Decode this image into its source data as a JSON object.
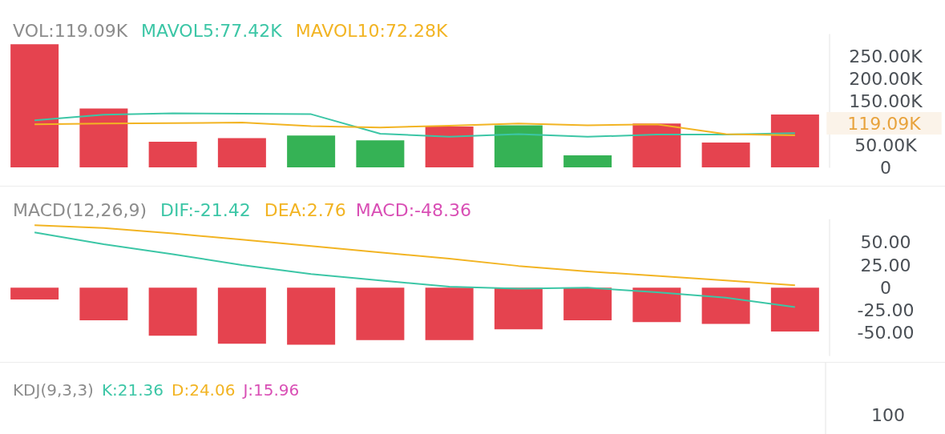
{
  "chart_data": [
    {
      "type": "bar",
      "title": "VOL:119.09K",
      "categories": [
        null,
        null,
        null,
        null,
        null,
        null,
        null,
        null,
        null,
        null,
        null,
        null
      ],
      "legend": "top left",
      "marker": "none",
      "grid": false,
      "ylim": [
        0,
        300
      ],
      "yticks": [
        0,
        {
          "value": 50,
          "label": "50.00K"
        },
        {
          "value": 150,
          "label": "150.00K"
        },
        {
          "value": 200,
          "label": "200.00K"
        },
        {
          "value": 250,
          "label": "250.00K"
        }
      ],
      "annotations": [
        "119.09K"
      ],
      "series": [
        {
          "type": "bar",
          "colors": [
            "#e5434f",
            "#e5434f",
            "#e5434f",
            "#e5434f",
            "#35b255",
            "#35b255",
            "#e5434f",
            "#35b255",
            "#35b255",
            "#e5434f",
            "#e5434f",
            "#e5434f"
          ],
          "values": [
            278,
            133,
            58,
            66,
            72,
            61,
            92,
            95,
            27,
            99,
            56,
            119.09
          ]
        },
        {
          "type": "line",
          "name": "MAVOL5:77.42K",
          "color": "#3cc6a6",
          "values": [
            106,
            119,
            122,
            121,
            120,
            76,
            69,
            75,
            69,
            74,
            74,
            77.42
          ]
        },
        {
          "type": "line",
          "name": "MAVOL10:72.28K",
          "color": "#f2b423",
          "values": [
            97,
            99,
            100,
            101,
            93,
            90,
            94,
            99,
            95,
            97,
            75,
            72.28
          ]
        }
      ]
    },
    {
      "type": "bar",
      "title": "MACD(12,26,9)",
      "categories": [
        null,
        null,
        null,
        null,
        null,
        null,
        null,
        null,
        null,
        null,
        null,
        null
      ],
      "legend": "top left",
      "marker": "none",
      "grid": false,
      "ylim": [
        -75,
        75
      ],
      "yticks": [
        {
          "value": 50,
          "label": "50.00"
        },
        {
          "value": 25,
          "label": "25.00"
        },
        0,
        {
          "value": -25,
          "label": "-25.00"
        },
        {
          "value": -50,
          "label": "-50.00"
        }
      ],
      "annotations": [
        "MACD:-48.36"
      ],
      "series": [
        {
          "type": "bar",
          "color": "#e5434f",
          "values": [
            -13,
            -36,
            -53,
            -62,
            -63,
            -58,
            -58,
            -46,
            -36,
            -38,
            -40,
            -48.36
          ]
        },
        {
          "type": "line",
          "name": "DIF:-21.42",
          "color": "#3cc6a6",
          "values": [
            61,
            48,
            37,
            25,
            15,
            8,
            1,
            -1,
            0,
            -5,
            -11,
            -21.42
          ]
        },
        {
          "type": "line",
          "name": "DEA:2.76",
          "color": "#f2b423",
          "values": [
            69,
            66,
            60,
            53,
            46,
            39,
            32,
            24,
            18,
            13,
            8,
            2.76
          ]
        }
      ]
    },
    {
      "type": "other",
      "title": "KDJ(9,3,3)",
      "annotations": [
        "K:21.36",
        "D:24.06",
        "J:15.96",
        "100"
      ]
    }
  ]
}
